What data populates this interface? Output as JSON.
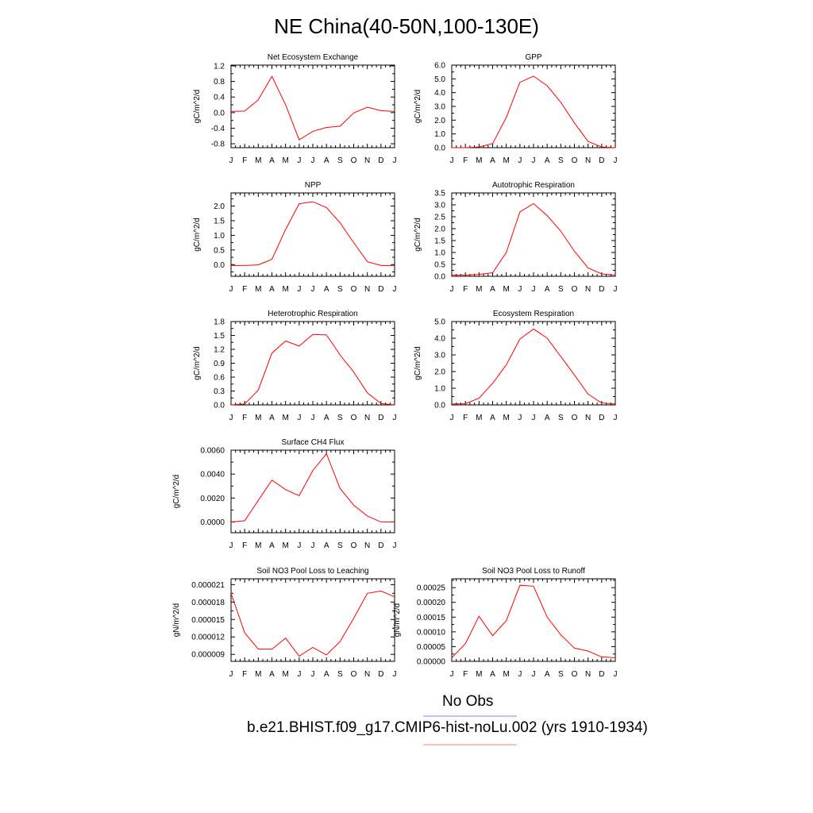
{
  "figure": {
    "title": "NE China(40-50N,100-130E)",
    "legend": [
      {
        "label": "No Obs",
        "color": "#8080ff"
      },
      {
        "label": "b.e21.BHIST.f09_g17.CMIP6-hist-noLu.002 (yrs 1910-1934)",
        "color": "#ff8080"
      }
    ],
    "series_color": "#ff0000"
  },
  "chart_data": [
    {
      "type": "line",
      "title": "Net Ecosystem Exchange",
      "ylabel": "gC/m^2/d",
      "x": [
        "J",
        "F",
        "M",
        "A",
        "M",
        "J",
        "J",
        "A",
        "S",
        "O",
        "N",
        "D",
        "J"
      ],
      "values": [
        0.03,
        0.04,
        0.33,
        0.93,
        0.2,
        -0.7,
        -0.48,
        -0.38,
        -0.35,
        -0.01,
        0.14,
        0.05,
        0.03
      ],
      "ylim": [
        -0.9,
        1.22
      ],
      "yticks": [
        "1.2",
        "0.8",
        "0.4",
        "0.0",
        "-0.4",
        "-0.8"
      ],
      "ytick_values": [
        1.2,
        0.8,
        0.4,
        0.0,
        -0.4,
        -0.8
      ]
    },
    {
      "type": "line",
      "title": "GPP",
      "ylabel": "gC/m^2/d",
      "x": [
        "J",
        "F",
        "M",
        "A",
        "M",
        "J",
        "J",
        "A",
        "S",
        "O",
        "N",
        "D",
        "J"
      ],
      "values": [
        0.0,
        0.0,
        0.05,
        0.3,
        2.2,
        4.75,
        5.2,
        4.5,
        3.3,
        1.8,
        0.45,
        0.05,
        0.0
      ],
      "ylim": [
        0,
        6.0
      ],
      "yticks": [
        "6.0",
        "5.0",
        "4.0",
        "3.0",
        "2.0",
        "1.0",
        "0.0"
      ],
      "ytick_values": [
        6,
        5,
        4,
        3,
        2,
        1,
        0
      ]
    },
    {
      "type": "line",
      "title": "NPP",
      "ylabel": "gC/m^2/d",
      "x": [
        "J",
        "F",
        "M",
        "A",
        "M",
        "J",
        "J",
        "A",
        "S",
        "O",
        "N",
        "D",
        "J"
      ],
      "values": [
        -0.03,
        -0.03,
        -0.01,
        0.18,
        1.2,
        2.08,
        2.15,
        1.95,
        1.43,
        0.75,
        0.1,
        -0.03,
        -0.03
      ],
      "ylim": [
        -0.4,
        2.45
      ],
      "yticks": [
        "2.0",
        "1.5",
        "1.0",
        "0.5",
        "0.0"
      ],
      "ytick_values": [
        2.0,
        1.5,
        1.0,
        0.5,
        0.0
      ]
    },
    {
      "type": "line",
      "title": "Autotrophic Respiration",
      "ylabel": "gC/m^2/d",
      "x": [
        "J",
        "F",
        "M",
        "A",
        "M",
        "J",
        "J",
        "A",
        "S",
        "O",
        "N",
        "D",
        "J"
      ],
      "values": [
        0.05,
        0.05,
        0.08,
        0.15,
        1.0,
        2.7,
        3.05,
        2.55,
        1.9,
        1.05,
        0.35,
        0.1,
        0.05
      ],
      "ylim": [
        0,
        3.5
      ],
      "yticks": [
        "3.5",
        "3.0",
        "2.5",
        "2.0",
        "1.5",
        "1.0",
        "0.5",
        "0.0"
      ],
      "ytick_values": [
        3.5,
        3.0,
        2.5,
        2.0,
        1.5,
        1.0,
        0.5,
        0.0
      ]
    },
    {
      "type": "line",
      "title": "Heterotrophic Respiration",
      "ylabel": "gC/m^2/d",
      "x": [
        "J",
        "F",
        "M",
        "A",
        "M",
        "J",
        "J",
        "A",
        "S",
        "O",
        "N",
        "D",
        "J"
      ],
      "values": [
        0.0,
        0.02,
        0.32,
        1.12,
        1.38,
        1.27,
        1.52,
        1.51,
        1.08,
        0.71,
        0.26,
        0.03,
        0.0
      ],
      "ylim": [
        0,
        1.8
      ],
      "yticks": [
        "1.8",
        "1.5",
        "1.2",
        "0.9",
        "0.6",
        "0.3",
        "0.0"
      ],
      "ytick_values": [
        1.8,
        1.5,
        1.2,
        0.9,
        0.6,
        0.3,
        0.0
      ]
    },
    {
      "type": "line",
      "title": "Ecosystem Respiration",
      "ylabel": "gC/m^2/d",
      "x": [
        "J",
        "F",
        "M",
        "A",
        "M",
        "J",
        "J",
        "A",
        "S",
        "O",
        "N",
        "D",
        "J"
      ],
      "values": [
        0.05,
        0.07,
        0.4,
        1.3,
        2.4,
        3.95,
        4.55,
        4.0,
        2.9,
        1.8,
        0.65,
        0.12,
        0.05
      ],
      "ylim": [
        0,
        5.0
      ],
      "yticks": [
        "5.0",
        "4.0",
        "3.0",
        "2.0",
        "1.0",
        "0.0"
      ],
      "ytick_values": [
        5,
        4,
        3,
        2,
        1,
        0
      ]
    },
    {
      "type": "line",
      "title": "Surface CH4 Flux",
      "ylabel": "gC/m^2/d",
      "x": [
        "J",
        "F",
        "M",
        "A",
        "M",
        "J",
        "J",
        "A",
        "S",
        "O",
        "N",
        "D",
        "J"
      ],
      "values": [
        0.0,
        0.0001,
        0.0018,
        0.0035,
        0.0027,
        0.0022,
        0.0043,
        0.0057,
        0.0028,
        0.0014,
        0.0005,
        0.0,
        0.0
      ],
      "ylim": [
        -0.0009,
        0.006
      ],
      "yticks": [
        "0.0060",
        "0.0040",
        "0.0020",
        "0.0000"
      ],
      "ytick_values": [
        0.006,
        0.004,
        0.002,
        0.0
      ]
    },
    {
      "type": "line",
      "title": "Soil NO3 Pool Loss to Leaching",
      "ylabel": "gN/m^2/d",
      "x": [
        "J",
        "F",
        "M",
        "A",
        "M",
        "J",
        "J",
        "A",
        "S",
        "O",
        "N",
        "D",
        "J"
      ],
      "values": [
        1.95e-05,
        1.27e-05,
        9.9e-06,
        9.9e-06,
        1.18e-05,
        8.7e-06,
        1.02e-05,
        8.9e-06,
        1.12e-05,
        1.52e-05,
        1.95e-05,
        1.99e-05,
        1.89e-05
      ],
      "ylim": [
        7.8e-06,
        2.2e-05
      ],
      "yticks": [
        "0.000021",
        "0.000018",
        "0.000015",
        "0.000012",
        "0.000009"
      ],
      "ytick_values": [
        2.1e-05,
        1.8e-05,
        1.5e-05,
        1.2e-05,
        9e-06
      ]
    },
    {
      "type": "line",
      "title": "Soil NO3 Pool Loss to Runoff",
      "ylabel": "gN/m^2/d",
      "x": [
        "J",
        "F",
        "M",
        "A",
        "M",
        "J",
        "J",
        "A",
        "S",
        "O",
        "N",
        "D",
        "J"
      ],
      "values": [
        1.2e-05,
        6e-05,
        0.000153,
        8.7e-05,
        0.000138,
        0.000258,
        0.000255,
        0.00015,
        9e-05,
        4.5e-05,
        3.5e-05,
        1.5e-05,
        1.2e-05
      ],
      "ylim": [
        0,
        0.00028
      ],
      "yticks": [
        "0.00025",
        "0.00020",
        "0.00015",
        "0.00010",
        "0.00005",
        "0.00000"
      ],
      "ytick_values": [
        0.00025,
        0.0002,
        0.00015,
        0.0001,
        5e-05,
        0.0
      ]
    }
  ]
}
